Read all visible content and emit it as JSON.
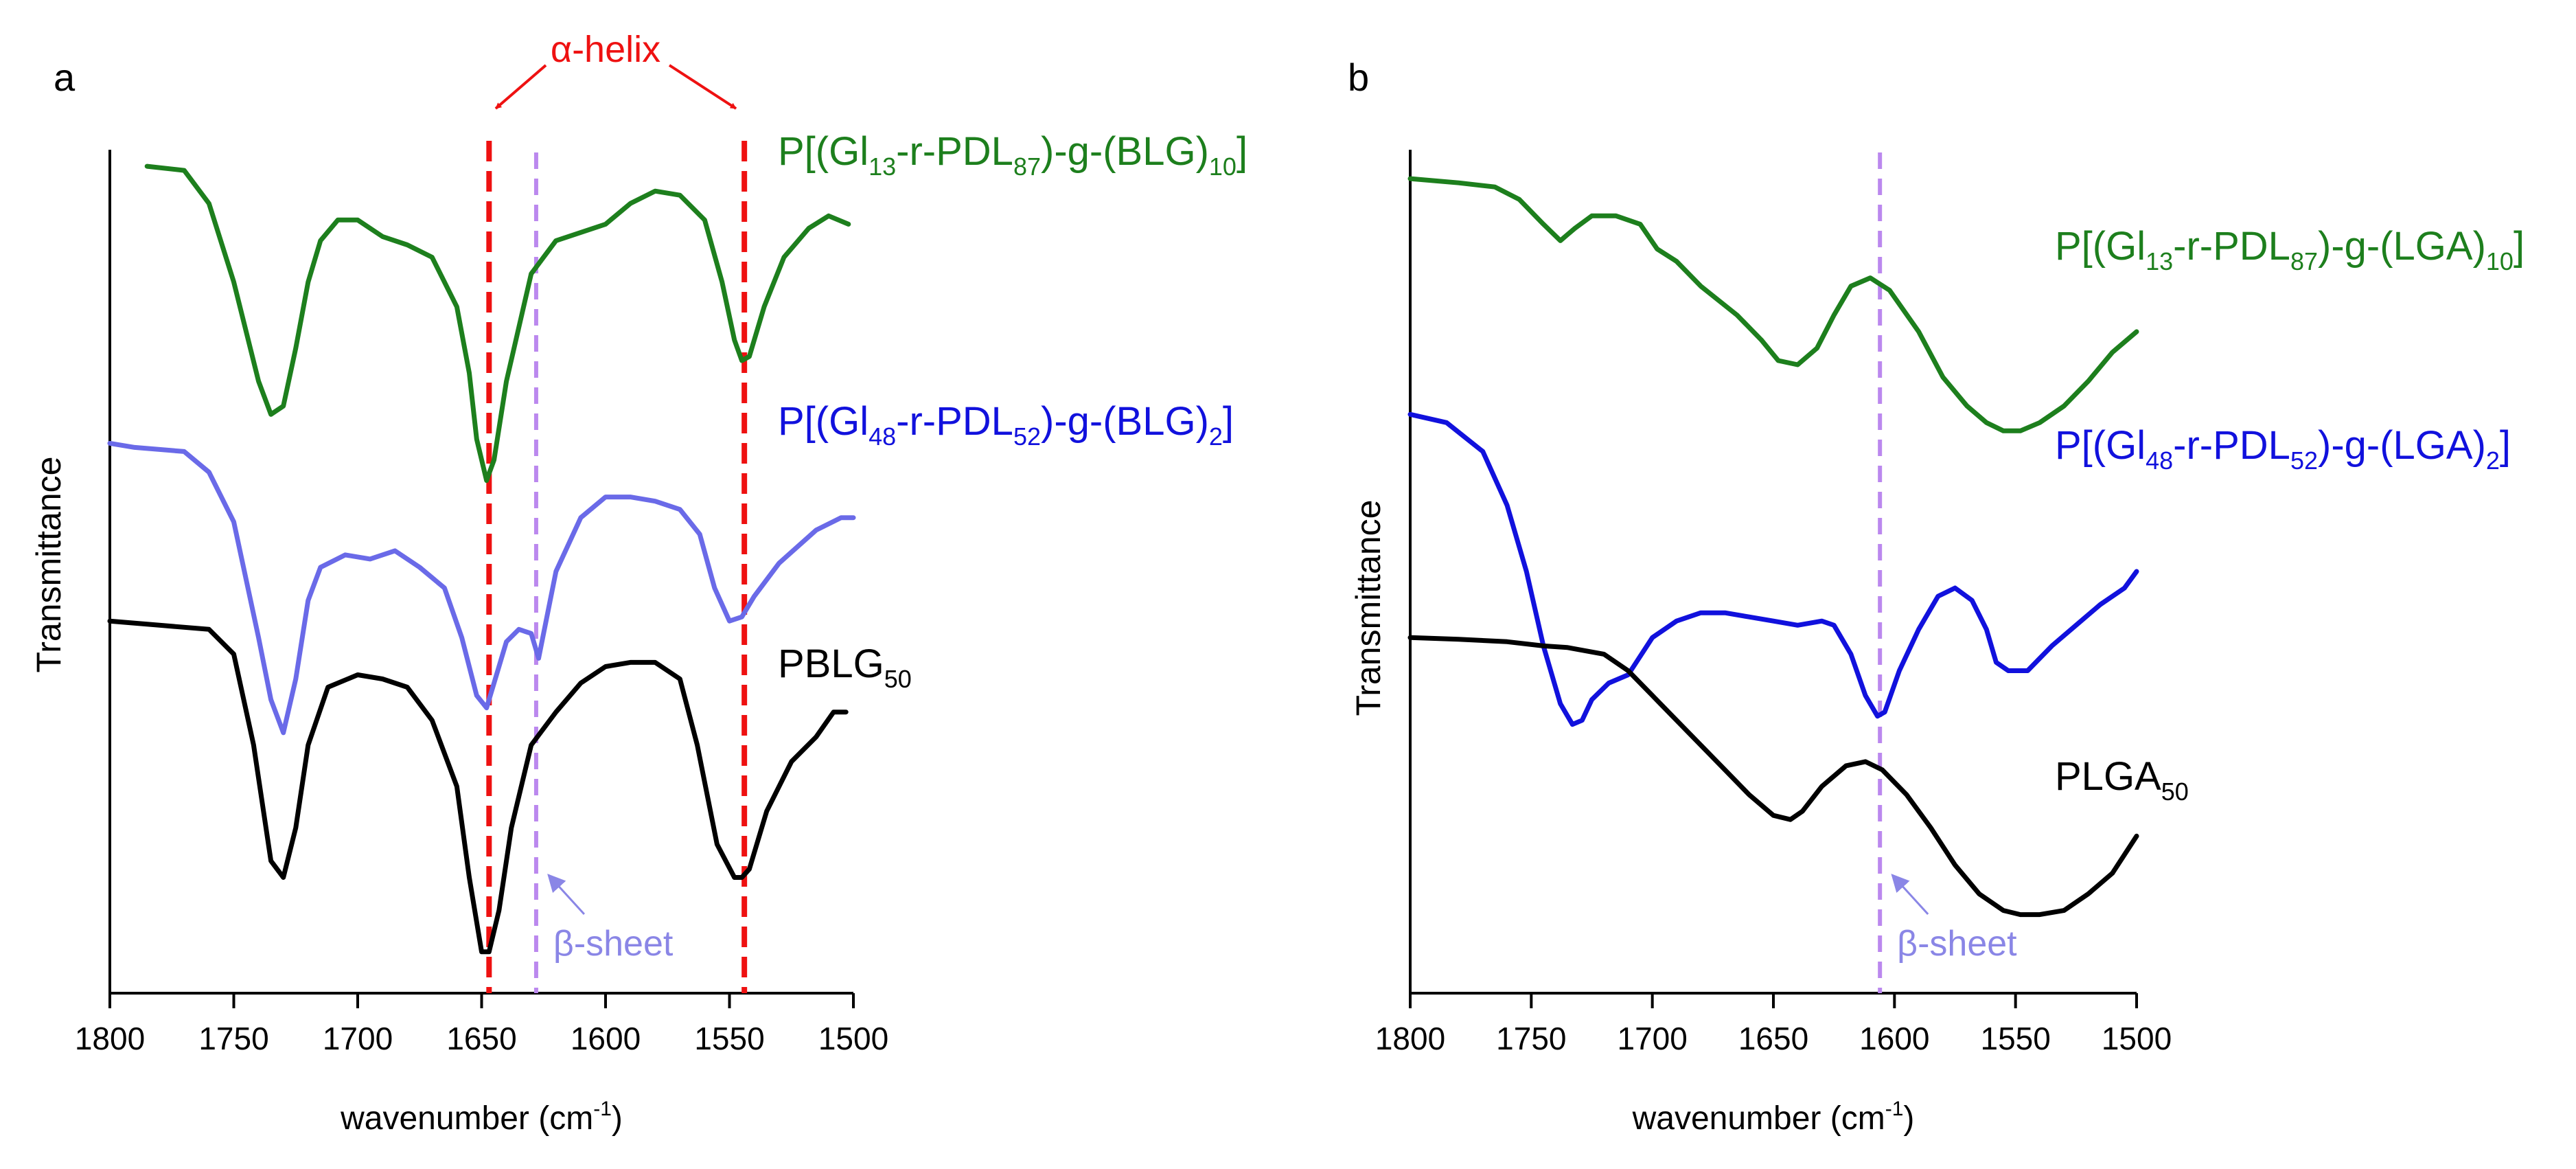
{
  "chart_data": [
    {
      "panel_label": "a",
      "type": "line",
      "xlabel": "wavenumber",
      "xlabel_unit_prefix": "(cm",
      "xlabel_unit_sup": "-1",
      "xlabel_unit_suffix": ")",
      "ylabel": "Transmittance",
      "xlim": [
        1800,
        1500
      ],
      "ylim": [
        0,
        1.02
      ],
      "ticks": [
        "1800",
        "1750",
        "1700",
        "1650",
        "1600",
        "1550",
        "1500"
      ],
      "tick_values": [
        1800,
        1750,
        1700,
        1650,
        1600,
        1550,
        1500
      ],
      "series": [
        {
          "name_parts": [
            [
              "P[(Gl",
              ""
            ],
            [
              "13",
              "sub"
            ],
            [
              "-r-PDL",
              ""
            ],
            [
              "87",
              "sub"
            ],
            [
              ")-g-(BLG)",
              ""
            ],
            [
              "10",
              "sub"
            ],
            [
              "]",
              ""
            ]
          ],
          "color": "#1d7f1d",
          "x": [
            1785,
            1770,
            1760,
            1750,
            1740,
            1735,
            1730,
            1725,
            1720,
            1715,
            1708,
            1700,
            1690,
            1680,
            1670,
            1660,
            1655,
            1652,
            1648,
            1645,
            1640,
            1630,
            1620,
            1600,
            1590,
            1580,
            1570,
            1560,
            1553,
            1548,
            1545,
            1542,
            1536,
            1528,
            1518,
            1510,
            1502
          ],
          "y": [
            1.0,
            0.995,
            0.955,
            0.86,
            0.74,
            0.7,
            0.71,
            0.78,
            0.86,
            0.91,
            0.935,
            0.935,
            0.915,
            0.905,
            0.89,
            0.83,
            0.75,
            0.67,
            0.62,
            0.645,
            0.74,
            0.87,
            0.91,
            0.93,
            0.955,
            0.97,
            0.965,
            0.935,
            0.86,
            0.79,
            0.765,
            0.77,
            0.83,
            0.89,
            0.925,
            0.94,
            0.93
          ]
        },
        {
          "name_parts": [
            [
              "P[(Gl",
              ""
            ],
            [
              "48",
              "sub"
            ],
            [
              "-r-PDL",
              ""
            ],
            [
              "52",
              "sub"
            ],
            [
              ")-g-(BLG)",
              ""
            ],
            [
              "2",
              "sub"
            ],
            [
              "]",
              ""
            ]
          ],
          "color": "#6a6ae8",
          "x": [
            1800,
            1790,
            1770,
            1760,
            1750,
            1740,
            1735,
            1730,
            1725,
            1720,
            1715,
            1705,
            1695,
            1685,
            1675,
            1665,
            1658,
            1652,
            1648,
            1645,
            1640,
            1635,
            1630,
            1627,
            1620,
            1610,
            1600,
            1590,
            1580,
            1570,
            1562,
            1556,
            1550,
            1545,
            1540,
            1530,
            1515,
            1505,
            1500
          ],
          "y": [
            0.665,
            0.66,
            0.655,
            0.63,
            0.57,
            0.43,
            0.355,
            0.315,
            0.38,
            0.475,
            0.515,
            0.53,
            0.525,
            0.535,
            0.515,
            0.49,
            0.43,
            0.36,
            0.345,
            0.375,
            0.425,
            0.44,
            0.435,
            0.405,
            0.51,
            0.575,
            0.6,
            0.6,
            0.595,
            0.585,
            0.555,
            0.49,
            0.45,
            0.455,
            0.48,
            0.52,
            0.56,
            0.575,
            0.575
          ]
        },
        {
          "name_parts": [
            [
              "PBLG",
              ""
            ],
            [
              "50",
              "sub"
            ]
          ],
          "color": "#000000",
          "x": [
            1800,
            1780,
            1760,
            1750,
            1742,
            1735,
            1730,
            1725,
            1720,
            1712,
            1700,
            1690,
            1680,
            1670,
            1660,
            1655,
            1650,
            1647,
            1643,
            1638,
            1630,
            1620,
            1610,
            1600,
            1590,
            1580,
            1570,
            1563,
            1555,
            1548,
            1545,
            1542,
            1535,
            1525,
            1515,
            1508,
            1503
          ],
          "y": [
            0.45,
            0.445,
            0.44,
            0.41,
            0.3,
            0.16,
            0.14,
            0.2,
            0.3,
            0.37,
            0.385,
            0.38,
            0.37,
            0.33,
            0.25,
            0.14,
            0.05,
            0.05,
            0.1,
            0.2,
            0.3,
            0.34,
            0.375,
            0.395,
            0.4,
            0.4,
            0.38,
            0.3,
            0.18,
            0.14,
            0.14,
            0.15,
            0.22,
            0.28,
            0.31,
            0.34,
            0.34
          ]
        }
      ],
      "annotations": {
        "alpha_helix_label": "α-helix",
        "beta_sheet_label": "β-sheet",
        "alpha_lines": [
          1647,
          1544
        ],
        "beta_line": 1628,
        "alpha_color": "#ee1111",
        "beta_color": "#bb88ee",
        "beta_text_color": "#8a86e6"
      }
    },
    {
      "panel_label": "b",
      "type": "line",
      "xlabel": "wavenumber",
      "xlabel_unit_prefix": "(cm",
      "xlabel_unit_sup": "-1",
      "xlabel_unit_suffix": ")",
      "ylabel": "Transmittance",
      "xlim": [
        1800,
        1500
      ],
      "ylim": [
        0,
        1.02
      ],
      "ticks": [
        "1800",
        "1750",
        "1700",
        "1650",
        "1600",
        "1550",
        "1500"
      ],
      "tick_values": [
        1800,
        1750,
        1700,
        1650,
        1600,
        1550,
        1500
      ],
      "series": [
        {
          "name_parts": [
            [
              "P[(Gl",
              ""
            ],
            [
              "13",
              "sub"
            ],
            [
              "-r-PDL",
              ""
            ],
            [
              "87",
              "sub"
            ],
            [
              ")-g-(LGA)",
              ""
            ],
            [
              "10",
              "sub"
            ],
            [
              "]",
              ""
            ]
          ],
          "color": "#1d7f1d",
          "x": [
            1800,
            1780,
            1765,
            1755,
            1745,
            1738,
            1732,
            1725,
            1715,
            1705,
            1698,
            1690,
            1680,
            1665,
            1655,
            1648,
            1640,
            1632,
            1625,
            1618,
            1610,
            1602,
            1590,
            1580,
            1570,
            1562,
            1555,
            1548,
            1540,
            1530,
            1520,
            1510,
            1500
          ],
          "y": [
            0.985,
            0.98,
            0.975,
            0.96,
            0.93,
            0.91,
            0.925,
            0.94,
            0.94,
            0.93,
            0.9,
            0.885,
            0.855,
            0.82,
            0.79,
            0.765,
            0.76,
            0.78,
            0.82,
            0.855,
            0.865,
            0.85,
            0.8,
            0.745,
            0.71,
            0.69,
            0.68,
            0.68,
            0.69,
            0.71,
            0.74,
            0.775,
            0.8
          ]
        },
        {
          "name_parts": [
            [
              "P[(Gl",
              ""
            ],
            [
              "48",
              "sub"
            ],
            [
              "-r-PDL",
              ""
            ],
            [
              "52",
              "sub"
            ],
            [
              ")-g-(LGA)",
              ""
            ],
            [
              "2",
              "sub"
            ],
            [
              "]",
              ""
            ]
          ],
          "color": "#1111dd",
          "x": [
            1800,
            1785,
            1770,
            1760,
            1752,
            1745,
            1738,
            1733,
            1729,
            1725,
            1718,
            1710,
            1700,
            1690,
            1680,
            1670,
            1660,
            1650,
            1640,
            1630,
            1625,
            1618,
            1612,
            1607,
            1604,
            1598,
            1590,
            1582,
            1575,
            1568,
            1562,
            1558,
            1553,
            1545,
            1535,
            1525,
            1515,
            1505,
            1500
          ],
          "y": [
            0.7,
            0.69,
            0.655,
            0.59,
            0.51,
            0.42,
            0.35,
            0.325,
            0.33,
            0.355,
            0.375,
            0.385,
            0.43,
            0.45,
            0.46,
            0.46,
            0.455,
            0.45,
            0.445,
            0.45,
            0.445,
            0.41,
            0.36,
            0.335,
            0.34,
            0.39,
            0.44,
            0.48,
            0.49,
            0.475,
            0.44,
            0.4,
            0.39,
            0.39,
            0.42,
            0.445,
            0.47,
            0.49,
            0.51
          ]
        },
        {
          "name_parts": [
            [
              "PLGA",
              ""
            ],
            [
              "50",
              "sub"
            ]
          ],
          "color": "#000000",
          "x": [
            1800,
            1780,
            1760,
            1745,
            1735,
            1720,
            1710,
            1700,
            1690,
            1680,
            1670,
            1660,
            1650,
            1643,
            1638,
            1630,
            1620,
            1612,
            1605,
            1595,
            1585,
            1575,
            1565,
            1555,
            1548,
            1540,
            1530,
            1520,
            1510,
            1500
          ],
          "y": [
            0.43,
            0.428,
            0.425,
            0.42,
            0.418,
            0.41,
            0.39,
            0.36,
            0.33,
            0.3,
            0.27,
            0.24,
            0.215,
            0.21,
            0.22,
            0.25,
            0.275,
            0.28,
            0.27,
            0.24,
            0.2,
            0.155,
            0.12,
            0.1,
            0.095,
            0.095,
            0.1,
            0.12,
            0.145,
            0.19
          ]
        }
      ],
      "annotations": {
        "beta_sheet_label": "β-sheet",
        "beta_line": 1606,
        "beta_color": "#bb88ee",
        "beta_text_color": "#8a86e6"
      }
    }
  ]
}
